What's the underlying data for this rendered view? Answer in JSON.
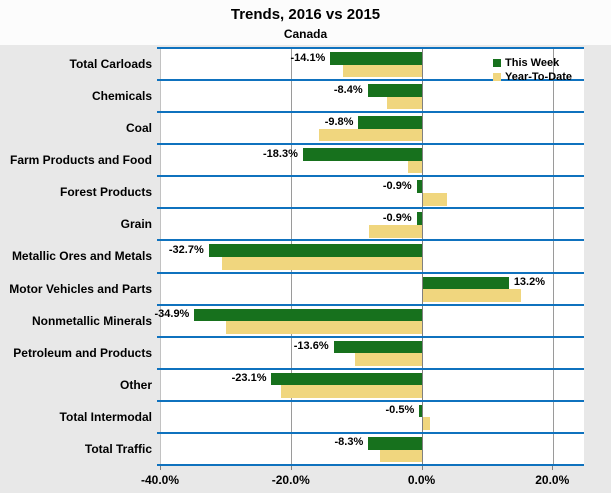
{
  "title": "Trends, 2016 vs 2015",
  "subtitle": "Canada",
  "colors": {
    "this_week": "#17711d",
    "year_to_date": "#f0d67e",
    "row_line": "#0f72be",
    "gridline": "#9a9a9a",
    "zero_line": "#808080",
    "plot_bg": "#ffffff",
    "page_bg": "#e8e8e8",
    "title_bg": "#fcfcfc"
  },
  "legend": [
    {
      "label": "This Week",
      "color": "#17711d"
    },
    {
      "label": "Year-To-Date",
      "color": "#f0d67e"
    }
  ],
  "chart_data": {
    "type": "bar",
    "orientation": "horizontal",
    "title": "Trends, 2016 vs 2015",
    "subtitle": "Canada",
    "categories": [
      "Total Carloads",
      "Chemicals",
      "Coal",
      "Farm Products and Food",
      "Forest Products",
      "Grain",
      "Metallic Ores and Metals",
      "Motor Vehicles and Parts",
      "Nonmetallic Minerals",
      "Petroleum and Products",
      "Other",
      "Total Intermodal",
      "Total Traffic"
    ],
    "series": [
      {
        "name": "This Week",
        "values": [
          -14.1,
          -8.4,
          -9.8,
          -18.3,
          -0.9,
          -0.9,
          -32.7,
          13.2,
          -34.9,
          -13.6,
          -23.1,
          -0.5,
          -8.3
        ],
        "labels": [
          "-14.1%",
          "-8.4%",
          "-9.8%",
          "-18.3%",
          "-0.9%",
          "-0.9%",
          "-32.7%",
          "13.2%",
          "-34.9%",
          "-13.6%",
          "-23.1%",
          "-0.5%",
          "-8.3%"
        ]
      },
      {
        "name": "Year-To-Date",
        "values": [
          -12.1,
          -5.4,
          -15.8,
          -2.2,
          3.8,
          -8.2,
          -30.6,
          15.1,
          -30.0,
          -10.3,
          -21.6,
          1.2,
          -6.5
        ],
        "labels": []
      }
    ],
    "xlim": [
      -40,
      24.7
    ],
    "ticks": [
      {
        "value": -40,
        "label": "-40.0%"
      },
      {
        "value": -20,
        "label": "-20.0%"
      },
      {
        "value": 0,
        "label": "0.0%"
      },
      {
        "value": 20,
        "label": "20.0%"
      }
    ],
    "grid": "vertical",
    "legend_position": "top-right",
    "value_units": "%"
  }
}
